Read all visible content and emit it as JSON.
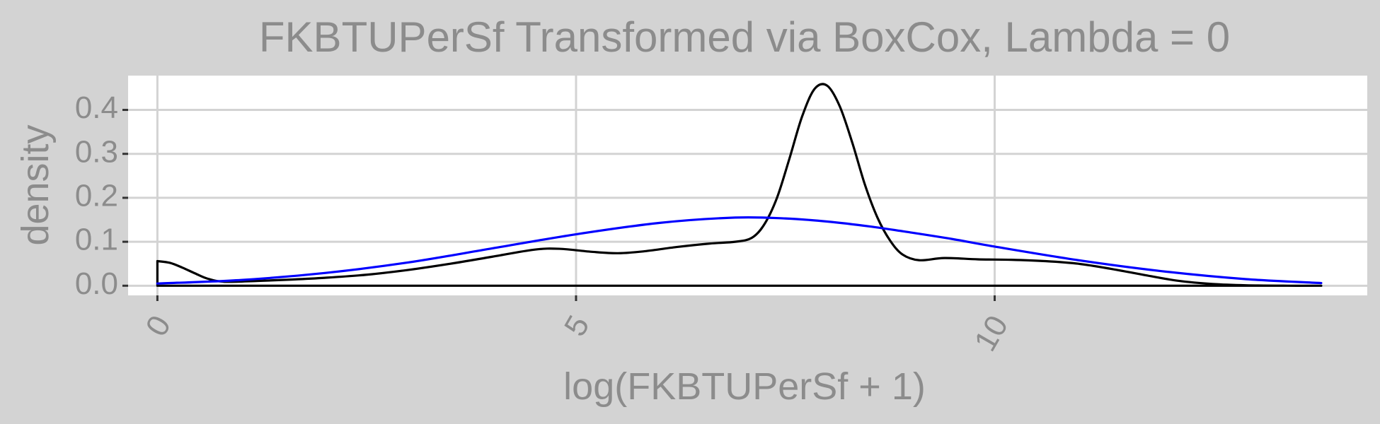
{
  "chart_data": {
    "type": "line",
    "title": "FKBTUPerSf Transformed via BoxCox, Lambda = 0",
    "xlabel": "log(FKBTUPerSf + 1)",
    "ylabel": "density",
    "xlim": [
      -0.35,
      14.45
    ],
    "ylim": [
      -0.022,
      0.478
    ],
    "x_ticks": [
      0,
      5,
      10
    ],
    "y_ticks": [
      0.0,
      0.1,
      0.2,
      0.3,
      0.4
    ],
    "x_tick_labels": [
      "0",
      "5",
      "10"
    ],
    "y_tick_labels": [
      "0.0",
      "0.1",
      "0.2",
      "0.3",
      "0.4"
    ],
    "grid": true,
    "background": "#d3d3d3",
    "panel_background": "#ffffff",
    "grid_color": "#d3d3d3",
    "text_color": "#8c8c8c",
    "series": [
      {
        "color": "#000000",
        "style": "kernel-density",
        "x": [
          0,
          0.15,
          0.3,
          0.45,
          0.6,
          0.8,
          1.2,
          1.6,
          2,
          2.5,
          3,
          3.5,
          4,
          4.5,
          4.8,
          5.2,
          5.5,
          5.8,
          6.2,
          6.6,
          6.9,
          7.1,
          7.25,
          7.4,
          7.55,
          7.7,
          7.85,
          8.0,
          8.15,
          8.3,
          8.45,
          8.6,
          8.75,
          8.9,
          9.1,
          9.4,
          9.8,
          10.2,
          10.6,
          11,
          11.4,
          11.8,
          12.2,
          12.6,
          13,
          13.5,
          13.9
        ],
        "values": [
          0.056,
          0.052,
          0.041,
          0.028,
          0.016,
          0.009,
          0.011,
          0.014,
          0.018,
          0.025,
          0.036,
          0.05,
          0.066,
          0.082,
          0.084,
          0.077,
          0.074,
          0.078,
          0.088,
          0.096,
          0.1,
          0.109,
          0.14,
          0.2,
          0.29,
          0.385,
          0.448,
          0.455,
          0.408,
          0.325,
          0.23,
          0.155,
          0.103,
          0.071,
          0.058,
          0.063,
          0.06,
          0.059,
          0.056,
          0.05,
          0.038,
          0.024,
          0.011,
          0.004,
          0.001,
          0.0,
          0.0
        ]
      },
      {
        "color": "#0000ff",
        "style": "fitted-normal",
        "x": [
          0,
          1,
          2,
          3,
          4,
          5,
          6,
          6.9,
          7.5,
          8,
          8.5,
          9,
          9.5,
          10,
          11,
          12,
          13,
          13.9
        ],
        "values": [
          0.005,
          0.013,
          0.029,
          0.053,
          0.085,
          0.117,
          0.143,
          0.155,
          0.153,
          0.146,
          0.135,
          0.121,
          0.106,
          0.089,
          0.058,
          0.033,
          0.015,
          0.006
        ]
      }
    ]
  }
}
